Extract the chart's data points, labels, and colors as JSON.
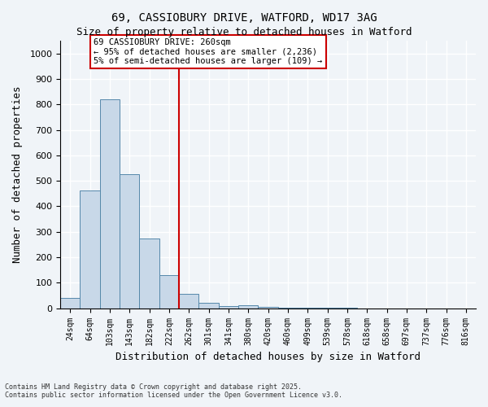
{
  "title1": "69, CASSIOBURY DRIVE, WATFORD, WD17 3AG",
  "title2": "Size of property relative to detached houses in Watford",
  "xlabel": "Distribution of detached houses by size in Watford",
  "ylabel": "Number of detached properties",
  "categories": [
    "24sqm",
    "64sqm",
    "103sqm",
    "143sqm",
    "182sqm",
    "222sqm",
    "262sqm",
    "301sqm",
    "341sqm",
    "380sqm",
    "420sqm",
    "460sqm",
    "499sqm",
    "539sqm",
    "578sqm",
    "618sqm",
    "658sqm",
    "697sqm",
    "737sqm",
    "776sqm",
    "816sqm"
  ],
  "values": [
    42,
    463,
    820,
    525,
    275,
    130,
    55,
    22,
    10,
    12,
    4,
    2,
    2,
    1,
    1,
    0,
    0,
    0,
    0,
    0,
    0
  ],
  "bar_color": "#c8d8e8",
  "bar_edge_color": "#5588aa",
  "vline_x": 6,
  "vline_color": "#cc0000",
  "annotation_text": "69 CASSIOBURY DRIVE: 260sqm\n← 95% of detached houses are smaller (2,236)\n5% of semi-detached houses are larger (109) →",
  "annotation_box_color": "#ffffff",
  "annotation_box_edge_color": "#cc0000",
  "background_color": "#f0f4f8",
  "grid_color": "#ffffff",
  "ylim": [
    0,
    1050
  ],
  "yticks": [
    0,
    100,
    200,
    300,
    400,
    500,
    600,
    700,
    800,
    900,
    1000
  ],
  "footer1": "Contains HM Land Registry data © Crown copyright and database right 2025.",
  "footer2": "Contains public sector information licensed under the Open Government Licence v3.0."
}
